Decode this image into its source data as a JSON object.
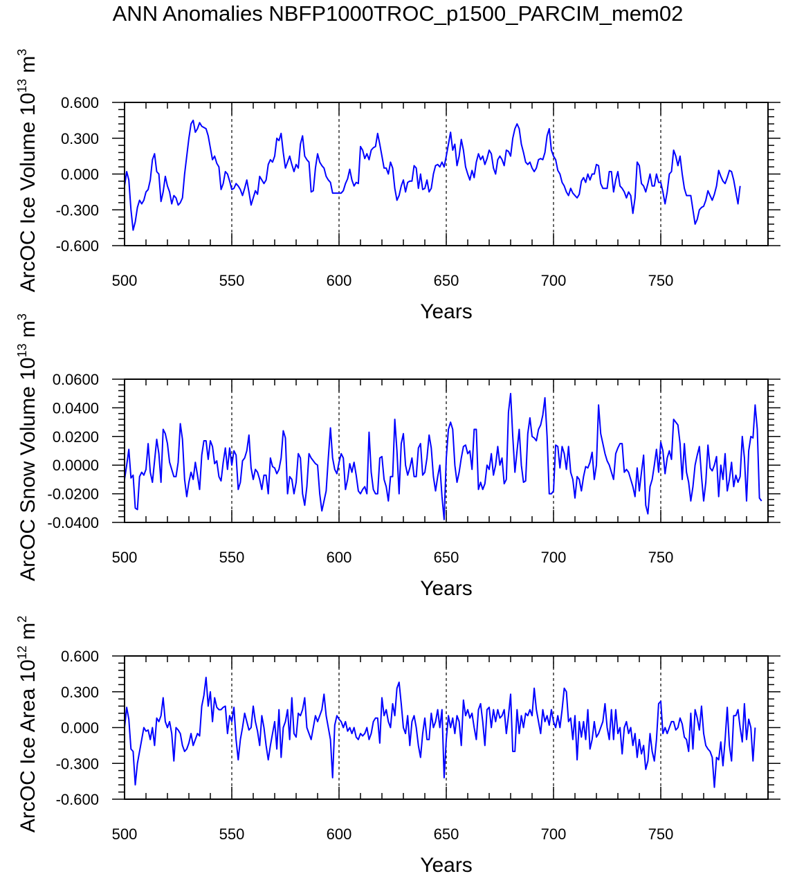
{
  "title": "ANN Anomalies NBFP1000TROC_p1500_PARCIM_mem02",
  "colors": {
    "line": "#0000ff",
    "axis": "#000000"
  },
  "chart_data": [
    {
      "type": "line",
      "ylabel": "ArcOC Ice Volume",
      "ylabel_power": "13",
      "ylabel_unit": "m",
      "ylabel_unit_exp": "3",
      "xlabel": "Years",
      "xlim": [
        500,
        800
      ],
      "ylim": [
        -0.6,
        0.6
      ],
      "yticks": [
        "-0.600",
        "-0.300",
        "0.000",
        "0.300",
        "0.600"
      ],
      "ytick_values": [
        -0.6,
        -0.3,
        0,
        0.3,
        0.6
      ],
      "xticks": [
        "500",
        "550",
        "600",
        "650",
        "700",
        "750"
      ],
      "xtick_values": [
        500,
        550,
        600,
        650,
        700,
        750
      ],
      "vlines": [
        550,
        600,
        650,
        700,
        750
      ],
      "x_start": 500,
      "values": [
        -0.1,
        0.02,
        -0.05,
        -0.3,
        -0.47,
        -0.4,
        -0.28,
        -0.22,
        -0.25,
        -0.22,
        -0.15,
        -0.13,
        -0.05,
        0.12,
        0.17,
        0.02,
        0.0,
        -0.23,
        -0.15,
        -0.02,
        -0.1,
        -0.15,
        -0.25,
        -0.18,
        -0.2,
        -0.26,
        -0.24,
        -0.2,
        0.0,
        0.15,
        0.3,
        0.42,
        0.45,
        0.35,
        0.38,
        0.43,
        0.4,
        0.39,
        0.38,
        0.32,
        0.22,
        0.12,
        0.15,
        0.09,
        0.06,
        -0.13,
        -0.08,
        0.02,
        0.0,
        -0.06,
        -0.13,
        -0.12,
        -0.08,
        -0.1,
        -0.13,
        -0.18,
        -0.12,
        -0.05,
        -0.15,
        -0.26,
        -0.2,
        -0.14,
        -0.17,
        -0.02,
        -0.05,
        -0.08,
        -0.05,
        0.08,
        0.12,
        0.1,
        0.15,
        0.3,
        0.28,
        0.34,
        0.18,
        0.05,
        0.1,
        0.15,
        0.08,
        0.02,
        0.08,
        0.05,
        0.25,
        0.32,
        0.15,
        0.12,
        0.1,
        -0.15,
        -0.14,
        0.05,
        0.17,
        0.1,
        0.07,
        0.05,
        -0.02,
        -0.05,
        -0.07,
        -0.16,
        -0.16,
        -0.16,
        -0.16,
        -0.16,
        -0.14,
        -0.08,
        -0.04,
        0.04,
        -0.05,
        -0.1,
        -0.07,
        -0.08,
        0.23,
        0.2,
        0.13,
        0.17,
        0.12,
        0.2,
        0.22,
        0.23,
        0.34,
        0.25,
        0.15,
        0.05,
        0.05,
        0.0,
        0.1,
        0.05,
        -0.12,
        -0.22,
        -0.18,
        -0.1,
        -0.05,
        -0.15,
        -0.07,
        -0.06,
        -0.06,
        0.07,
        0.05,
        -0.12,
        0.0,
        -0.13,
        -0.12,
        -0.05,
        -0.15,
        -0.12,
        0.0,
        0.07,
        0.08,
        0.06,
        0.1,
        0.06,
        0.15,
        0.25,
        0.35,
        0.2,
        0.25,
        0.07,
        0.15,
        0.29,
        0.2,
        0.06,
        0.0,
        -0.05,
        0.03,
        -0.03,
        0.1,
        0.17,
        0.12,
        0.15,
        0.08,
        0.13,
        0.2,
        0.17,
        0.05,
        0.0,
        0.12,
        0.15,
        0.12,
        0.07,
        0.2,
        0.19,
        0.15,
        0.3,
        0.38,
        0.42,
        0.38,
        0.25,
        0.18,
        0.1,
        0.08,
        0.1,
        0.05,
        0.02,
        0.05,
        0.12,
        0.13,
        0.12,
        0.18,
        0.32,
        0.38,
        0.2,
        0.15,
        0.12,
        0.03,
        0.0,
        -0.07,
        -0.1,
        -0.15,
        -0.18,
        -0.12,
        -0.16,
        -0.18,
        -0.2,
        -0.17,
        -0.06,
        -0.03,
        -0.07,
        0.0,
        -0.05,
        0.0,
        0.0,
        0.08,
        0.07,
        -0.08,
        -0.12,
        -0.12,
        -0.12,
        0.02,
        0.02,
        -0.15,
        -0.05,
        0.02,
        -0.1,
        -0.12,
        -0.15,
        -0.2,
        -0.15,
        -0.18,
        -0.33,
        -0.2,
        0.1,
        0.07,
        -0.08,
        -0.1,
        -0.15,
        -0.08,
        0.0,
        -0.1,
        -0.1,
        0.0,
        -0.07,
        -0.07,
        -0.15,
        -0.25,
        -0.15,
        0.0,
        0.02,
        0.2,
        0.15,
        0.07,
        0.15,
        0.0,
        -0.12,
        -0.18,
        -0.18,
        -0.18,
        -0.3,
        -0.42,
        -0.38,
        -0.3,
        -0.28,
        -0.27,
        -0.22,
        -0.14,
        -0.18,
        -0.22,
        -0.17,
        -0.1,
        0.03,
        -0.02,
        -0.06,
        -0.08,
        -0.03,
        0.03,
        0.02,
        -0.05,
        -0.15,
        -0.25,
        -0.1
      ]
    },
    {
      "type": "line",
      "ylabel": "ArcOC Snow Volume",
      "ylabel_power": "13",
      "ylabel_unit": "m",
      "ylabel_unit_exp": "3",
      "xlabel": "Years",
      "xlim": [
        500,
        800
      ],
      "ylim": [
        -0.04,
        0.06
      ],
      "yticks": [
        "-0.0400",
        "-0.0200",
        "0.0000",
        "0.0200",
        "0.0400",
        "0.0600"
      ],
      "ytick_values": [
        -0.04,
        -0.02,
        0,
        0.02,
        0.04,
        0.06
      ],
      "xticks": [
        "500",
        "550",
        "600",
        "650",
        "700",
        "750"
      ],
      "xtick_values": [
        500,
        550,
        600,
        650,
        700,
        750
      ],
      "vlines": [
        550,
        600,
        650,
        700,
        750
      ],
      "x_start": 500,
      "values": [
        -0.01,
        0.0,
        0.011,
        -0.009,
        -0.007,
        -0.03,
        -0.031,
        -0.008,
        -0.005,
        -0.007,
        -0.003,
        0.015,
        -0.005,
        -0.012,
        0.003,
        0.018,
        0.008,
        -0.012,
        0.025,
        0.022,
        0.015,
        0.002,
        -0.003,
        -0.008,
        -0.008,
        0.002,
        0.029,
        0.018,
        -0.01,
        -0.022,
        -0.012,
        -0.005,
        -0.01,
        0.002,
        -0.007,
        -0.017,
        0.007,
        0.017,
        0.017,
        0.004,
        0.017,
        0.013,
        0.001,
        0.003,
        -0.008,
        -0.011,
        0.002,
        0.012,
        -0.003,
        0.012,
        0.0,
        0.01,
        0.007,
        -0.017,
        -0.012,
        0.003,
        0.005,
        0.01,
        0.021,
        -0.002,
        -0.01,
        -0.003,
        -0.005,
        -0.01,
        -0.017,
        -0.007,
        -0.007,
        -0.02,
        0.005,
        -0.001,
        -0.002,
        -0.006,
        -0.003,
        0.005,
        0.024,
        0.019,
        -0.02,
        -0.008,
        -0.01,
        -0.02,
        -0.012,
        0.008,
        0.005,
        -0.02,
        -0.028,
        -0.015,
        0.008,
        0.005,
        0.003,
        0.001,
        0.0,
        -0.02,
        -0.032,
        -0.025,
        -0.018,
        0.005,
        0.026,
        0.005,
        -0.003,
        -0.006,
        0.002,
        0.008,
        0.005,
        -0.017,
        -0.01,
        0.001,
        -0.005,
        0.002,
        -0.007,
        -0.018,
        -0.02,
        -0.017,
        -0.015,
        -0.02,
        0.023,
        -0.005,
        -0.017,
        -0.02,
        -0.02,
        0.005,
        0.006,
        -0.01,
        -0.015,
        -0.025,
        -0.008,
        -0.008,
        0.032,
        0.01,
        -0.02,
        0.015,
        0.022,
        0.0,
        -0.007,
        -0.002,
        0.005,
        -0.008,
        -0.008,
        0.012,
        0.015,
        -0.007,
        -0.005,
        0.005,
        0.021,
        0.012,
        -0.008,
        -0.018,
        -0.008,
        0.0,
        -0.022,
        -0.038,
        0.005,
        0.025,
        0.03,
        0.025,
        0.0,
        -0.012,
        -0.005,
        0.005,
        0.013,
        0.014,
        0.008,
        0.01,
        -0.003,
        0.025,
        0.025,
        -0.017,
        -0.012,
        -0.017,
        -0.013,
        0.0,
        -0.003,
        0.008,
        -0.007,
        0.0,
        0.013,
        0.0,
        0.005,
        -0.013,
        -0.01,
        0.037,
        0.05,
        0.02,
        -0.005,
        0.01,
        0.025,
        0.0,
        -0.012,
        -0.011,
        0.022,
        0.033,
        0.02,
        0.019,
        0.017,
        0.025,
        0.028,
        0.035,
        0.047,
        0.02,
        -0.02,
        -0.02,
        -0.018,
        0.014,
        0.013,
        -0.002,
        0.013,
        0.008,
        -0.003,
        0.013,
        -0.005,
        -0.01,
        -0.023,
        -0.008,
        -0.01,
        -0.018,
        -0.008,
        -0.001,
        -0.002,
        0.002,
        0.009,
        -0.01,
        0.0,
        0.042,
        0.022,
        0.015,
        0.008,
        0.003,
        0.0,
        -0.005,
        -0.01,
        0.008,
        0.012,
        0.015,
        0.015,
        -0.005,
        -0.003,
        -0.005,
        -0.01,
        -0.015,
        -0.022,
        -0.002,
        -0.018,
        -0.005,
        0.007,
        -0.028,
        -0.034,
        -0.015,
        -0.01,
        0.0,
        0.011,
        -0.005,
        0.016,
        0.01,
        -0.006,
        0.005,
        0.01,
        0.004,
        0.032,
        0.03,
        0.028,
        0.015,
        -0.01,
        0.015,
        -0.005,
        -0.012,
        -0.025,
        -0.015,
        0.0,
        0.007,
        0.013,
        -0.008,
        -0.025,
        -0.012,
        0.014,
        -0.002,
        -0.004,
        0.0,
        0.006,
        -0.022,
        0.0,
        -0.01,
        0.008,
        -0.018,
        -0.01,
        0.002,
        -0.015,
        -0.007,
        -0.012,
        -0.008,
        0.02,
        0.005,
        -0.025,
        0.01,
        0.02,
        0.019,
        0.042,
        0.025,
        -0.023,
        -0.025
      ]
    },
    {
      "type": "line",
      "ylabel": "ArcOC Ice Area",
      "ylabel_power": "12",
      "ylabel_unit": "m",
      "ylabel_unit_exp": "2",
      "xlabel": "Years",
      "xlim": [
        500,
        800
      ],
      "ylim": [
        -0.6,
        0.6
      ],
      "yticks": [
        "-0.600",
        "-0.300",
        "0.000",
        "0.300",
        "0.600"
      ],
      "ytick_values": [
        -0.6,
        -0.3,
        0,
        0.3,
        0.6
      ],
      "xticks": [
        "500",
        "550",
        "600",
        "650",
        "700",
        "750"
      ],
      "xtick_values": [
        500,
        550,
        600,
        650,
        700,
        750
      ],
      "vlines": [
        550,
        600,
        650,
        700,
        750
      ],
      "x_start": 500,
      "values": [
        0.0,
        0.17,
        0.07,
        -0.18,
        -0.2,
        -0.48,
        -0.3,
        -0.2,
        -0.1,
        0.0,
        -0.03,
        -0.02,
        -0.1,
        0.0,
        -0.15,
        0.08,
        0.05,
        0.1,
        0.25,
        0.05,
        0.0,
        0.05,
        -0.05,
        -0.28,
        0.0,
        -0.02,
        -0.05,
        -0.15,
        -0.2,
        -0.18,
        -0.13,
        -0.05,
        -0.15,
        -0.1,
        -0.05,
        -0.07,
        0.18,
        0.27,
        0.42,
        0.18,
        0.3,
        0.05,
        0.25,
        0.17,
        0.15,
        0.15,
        0.17,
        0.18,
        -0.05,
        0.1,
        0.05,
        0.17,
        -0.1,
        -0.27,
        -0.1,
        0.0,
        0.12,
        0.05,
        -0.02,
        0.0,
        0.18,
        0.05,
        -0.03,
        -0.15,
        0.1,
        0.0,
        -0.15,
        -0.27,
        -0.15,
        -0.05,
        0.05,
        -0.18,
        0.15,
        -0.25,
        0.0,
        0.05,
        0.15,
        -0.1,
        0.25,
        -0.05,
        -0.08,
        0.12,
        0.1,
        0.15,
        0.25,
        0.0,
        -0.05,
        -0.1,
        0.0,
        0.1,
        0.05,
        0.1,
        0.15,
        0.28,
        0.1,
        0.0,
        -0.1,
        -0.42,
        0.02,
        0.1,
        0.07,
        0.05,
        0.0,
        0.05,
        -0.03,
        0.0,
        -0.05,
        0.0,
        -0.08,
        -0.1,
        -0.05,
        -0.07,
        -0.05,
        0.0,
        -0.1,
        -0.05,
        0.05,
        0.08,
        0.08,
        -0.13,
        0.25,
        0.1,
        0.15,
        0.05,
        0.0,
        0.2,
        0.1,
        0.33,
        0.38,
        0.2,
        0.0,
        -0.05,
        0.1,
        -0.15,
        0.05,
        0.1,
        0.0,
        -0.15,
        -0.25,
        -0.05,
        0.08,
        -0.1,
        -0.1,
        0.12,
        0.0,
        0.05,
        0.15,
        0.0,
        0.15,
        -0.42,
        -0.1,
        0.1,
        0.0,
        0.08,
        -0.05,
        0.1,
        0.05,
        -0.15,
        0.23,
        0.1,
        0.15,
        0.08,
        0.12,
        0.0,
        -0.1,
        0.15,
        0.2,
        0.05,
        -0.15,
        0.15,
        0.17,
        0.0,
        0.15,
        0.05,
        0.15,
        0.08,
        0.1,
        0.15,
        -0.05,
        0.1,
        0.28,
        -0.2,
        -0.2,
        0.15,
        -0.05,
        0.1,
        0.0,
        0.12,
        0.1,
        0.15,
        0.1,
        0.33,
        0.15,
        0.05,
        -0.05,
        0.15,
        0.05,
        0.1,
        0.02,
        0.15,
        0.05,
        0.0,
        0.1,
        0.0,
        0.15,
        0.33,
        0.3,
        0.05,
        0.08,
        -0.1,
        0.1,
        -0.27,
        0.05,
        -0.08,
        0.05,
        -0.1,
        0.15,
        -0.18,
        -0.1,
        0.05,
        -0.08,
        -0.05,
        0.0,
        0.05,
        0.2,
        0.0,
        -0.1,
        0.15,
        -0.1,
        0.15,
        -0.05,
        0.0,
        -0.22,
        0.0,
        0.05,
        -0.05,
        0.0,
        -0.15,
        -0.05,
        -0.25,
        -0.1,
        -0.22,
        -0.15,
        -0.35,
        -0.28,
        -0.05,
        -0.2,
        -0.28,
        -0.1,
        0.2,
        0.22,
        -0.05,
        0.0,
        -0.05,
        0.0,
        0.05,
        0.05,
        -0.02,
        0.0,
        0.08,
        0.03,
        -0.08,
        -0.1,
        -0.2,
        0.12,
        -0.18,
        0.15,
        0.08,
        -0.02,
        0.18,
        -0.05,
        -0.15,
        -0.18,
        -0.2,
        -0.25,
        -0.5,
        -0.25,
        -0.27,
        -0.12,
        -0.32,
        -0.1,
        0.17,
        -0.15,
        -0.28,
        0.1,
        0.1,
        0.15,
        0.0,
        -0.12,
        0.2,
        -0.1,
        0.07,
        0.0,
        -0.28,
        0.0
      ]
    }
  ]
}
